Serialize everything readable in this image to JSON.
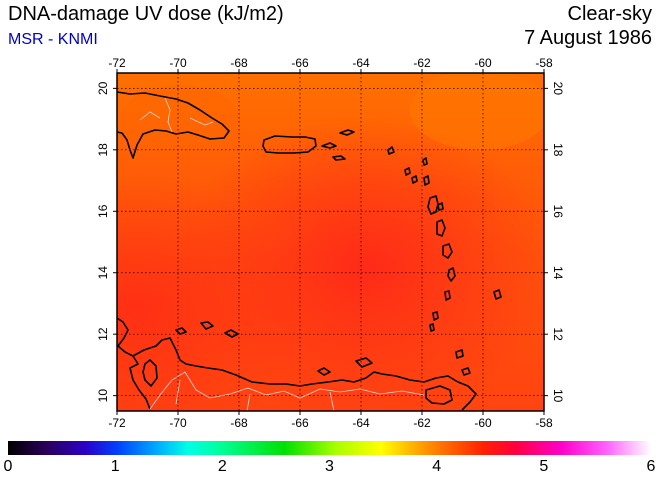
{
  "header": {
    "title": "DNA-damage UV dose (kJ/m2)",
    "credit": "MSR - KNMI",
    "condition": "Clear-sky",
    "date": "7 August 1986"
  },
  "map": {
    "lon_ticks": [
      "-72",
      "-70",
      "-68",
      "-66",
      "-64",
      "-62",
      "-60",
      "-58"
    ],
    "lat_ticks": [
      "10",
      "12",
      "14",
      "16",
      "18",
      "20"
    ],
    "field_colors": {
      "north": "#ff6a00",
      "center": "#ff4a10",
      "southwest": "#ff3a14",
      "coast_line": "#000000",
      "borders": "#c8c8c8"
    }
  },
  "colorbar": {
    "labels": [
      "0",
      "1",
      "2",
      "3",
      "4",
      "5",
      "6"
    ],
    "range": [
      0,
      6
    ]
  }
}
